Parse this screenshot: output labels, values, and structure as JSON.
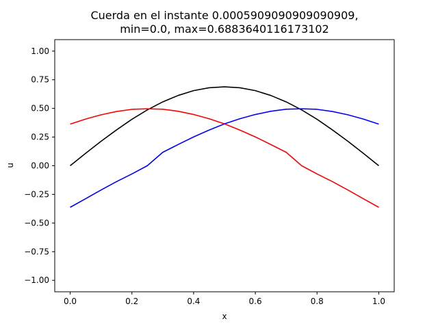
{
  "chart_data": {
    "type": "line",
    "title": "Cuerda en el instante 0.0005909090909090909,",
    "subtitle": "min=0.0, max=0.6883640116173102",
    "xlabel": "x",
    "ylabel": "u",
    "xlim": [
      -0.05,
      1.05
    ],
    "ylim": [
      -1.1,
      1.1
    ],
    "grid": false,
    "x_ticks": [
      "0.0",
      "0.2",
      "0.4",
      "0.6",
      "0.8",
      "1.0"
    ],
    "y_ticks": [
      "−1.00",
      "−0.75",
      "−0.50",
      "−0.25",
      "0.00",
      "0.25",
      "0.50",
      "0.75",
      "1.00"
    ],
    "x": [
      0.0,
      0.05,
      0.1,
      0.15,
      0.2,
      0.25,
      0.3,
      0.35,
      0.4,
      0.45,
      0.5,
      0.55,
      0.6,
      0.65,
      0.7,
      0.75,
      0.8,
      0.85,
      0.9,
      0.95,
      1.0
    ],
    "series": [
      {
        "color": "#000000",
        "values": [
          0.0,
          0.108,
          0.213,
          0.312,
          0.405,
          0.487,
          0.557,
          0.613,
          0.655,
          0.68,
          0.688,
          0.68,
          0.655,
          0.613,
          0.557,
          0.487,
          0.405,
          0.312,
          0.213,
          0.108,
          0.0
        ]
      },
      {
        "color": "#ff0000",
        "values": [
          0.363,
          0.407,
          0.444,
          0.473,
          0.492,
          0.497,
          0.493,
          0.475,
          0.447,
          0.41,
          0.365,
          0.311,
          0.251,
          0.185,
          0.117,
          0.0,
          -0.072,
          -0.139,
          -0.212,
          -0.288,
          -0.363
        ]
      },
      {
        "color": "#0000ff",
        "values": [
          -0.363,
          -0.288,
          -0.212,
          -0.139,
          -0.072,
          0.0,
          0.117,
          0.185,
          0.251,
          0.311,
          0.365,
          0.41,
          0.447,
          0.475,
          0.493,
          0.497,
          0.492,
          0.473,
          0.444,
          0.407,
          0.363
        ]
      }
    ]
  }
}
